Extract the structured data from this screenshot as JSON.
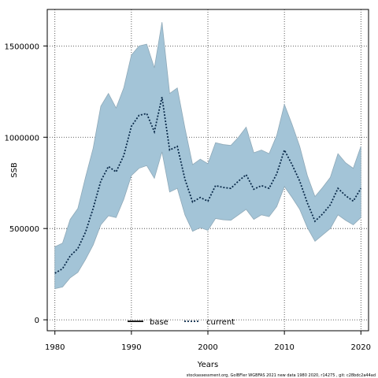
{
  "chart_data": {
    "type": "line",
    "xlabel": "Years",
    "ylabel": "SSB",
    "xlim": [
      1979,
      2021
    ],
    "ylim": [
      -60000,
      1700000
    ],
    "x_ticks": [
      1980,
      1990,
      2000,
      2010,
      2020
    ],
    "y_ticks": [
      0,
      500000,
      1000000,
      1500000
    ],
    "x_tick_labels": [
      "1980",
      "1990",
      "2000",
      "2010",
      "2020"
    ],
    "y_tick_labels": [
      "0",
      "500000",
      "1000000",
      "1500000"
    ],
    "grid": true,
    "legend": {
      "placement": "bottom-center",
      "entries": [
        {
          "label": "base",
          "style": "solid",
          "color": "#000000"
        },
        {
          "label": "current",
          "style": "dotted",
          "color": "#0a2a4a"
        }
      ]
    },
    "band_color": "#a3c4d7",
    "band_edge_color": "#8fa9b8",
    "x": [
      1980,
      1981,
      1982,
      1983,
      1984,
      1985,
      1986,
      1987,
      1988,
      1989,
      1990,
      1991,
      1992,
      1993,
      1994,
      1995,
      1996,
      1997,
      1998,
      1999,
      2000,
      2001,
      2002,
      2003,
      2004,
      2005,
      2006,
      2007,
      2008,
      2009,
      2010,
      2011,
      2012,
      2013,
      2014,
      2015,
      2016,
      2017,
      2018,
      2019,
      2020
    ],
    "series": [
      {
        "name": "current",
        "values": [
          255000,
          280000,
          350000,
          390000,
          480000,
          610000,
          760000,
          840000,
          810000,
          900000,
          1060000,
          1120000,
          1130000,
          1030000,
          1220000,
          930000,
          950000,
          770000,
          645000,
          670000,
          650000,
          735000,
          725000,
          720000,
          760000,
          795000,
          715000,
          735000,
          720000,
          800000,
          930000,
          850000,
          760000,
          640000,
          540000,
          580000,
          630000,
          720000,
          680000,
          650000,
          720000
        ],
        "lower": [
          170000,
          180000,
          230000,
          260000,
          330000,
          410000,
          520000,
          570000,
          560000,
          660000,
          790000,
          830000,
          845000,
          775000,
          920000,
          700000,
          720000,
          575000,
          485000,
          505000,
          490000,
          555000,
          548000,
          545000,
          575000,
          605000,
          550000,
          575000,
          565000,
          620000,
          730000,
          670000,
          605000,
          505000,
          430000,
          465000,
          500000,
          575000,
          545000,
          520000,
          560000
        ],
        "upper": [
          400000,
          420000,
          550000,
          610000,
          780000,
          940000,
          1170000,
          1240000,
          1160000,
          1270000,
          1450000,
          1500000,
          1510000,
          1380000,
          1630000,
          1240000,
          1270000,
          1050000,
          850000,
          880000,
          855000,
          970000,
          960000,
          955000,
          1000000,
          1055000,
          915000,
          930000,
          910000,
          1010000,
          1180000,
          1070000,
          950000,
          790000,
          675000,
          725000,
          780000,
          910000,
          860000,
          830000,
          950000
        ]
      }
    ],
    "footnote": "stockassessment.org, GolBFler WGBFAS 2021 new data 1980 2020, r14275 , git: c28bdc2a44ad"
  }
}
